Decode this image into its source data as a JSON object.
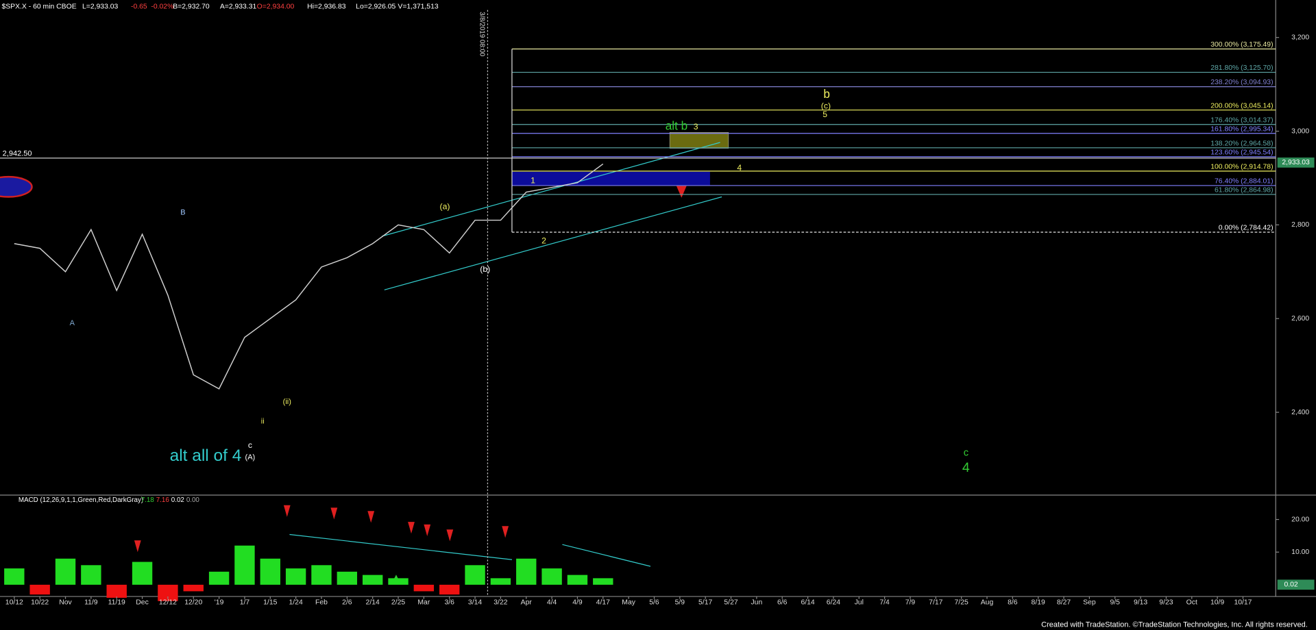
{
  "chart_data": {
    "type": "line",
    "header": [
      "$SPX.X - 60 min CBOE",
      "L=2,933.03",
      "-0.65",
      "-0.02%",
      "B=2,932.70",
      "A=2,933.31",
      "O=2,934.00",
      "Hi=2,936.83",
      "Lo=2,926.05",
      "V=1,371,513"
    ],
    "header_colors": [
      "#ffffff",
      "#ffffff",
      "#ff4040",
      "#ff4040",
      "#ffffff",
      "#ffffff",
      "#ff4040",
      "#ffffff",
      "#ffffff",
      "#ffffff"
    ],
    "categories": [
      "10/12",
      "10/22",
      "Nov",
      "11/9",
      "11/19",
      "Dec",
      "12/12",
      "12/20",
      "'19",
      "1/7",
      "1/15",
      "1/24",
      "Feb",
      "2/6",
      "2/14",
      "2/25",
      "Mar",
      "3/6",
      "3/14",
      "3/22",
      "Apr",
      "4/4",
      "4/9",
      "4/17",
      "May",
      "5/6",
      "5/9",
      "5/17",
      "5/27",
      "Jun",
      "6/6",
      "6/14",
      "6/24",
      "Jul",
      "7/4",
      "7/9",
      "7/17",
      "7/25",
      "Aug",
      "8/6",
      "8/19",
      "8/27",
      "Sep",
      "9/5",
      "9/13",
      "9/23",
      "Oct",
      "10/9",
      "10/17"
    ],
    "series": [
      {
        "name": "$SPX.X",
        "color": "#d0d0d0",
        "values": [
          2760,
          2750,
          2700,
          2790,
          2660,
          2780,
          2650,
          2480,
          2450,
          2560,
          2600,
          2640,
          2710,
          2730,
          2760,
          2800,
          2790,
          2740,
          2810,
          2810,
          2870,
          2880,
          2890,
          2930,
          null,
          null,
          null,
          null,
          null,
          null,
          null,
          null,
          null,
          null,
          null,
          null,
          null,
          null,
          null,
          null,
          null,
          null,
          null,
          null,
          null,
          null,
          null,
          null,
          null
        ]
      }
    ],
    "ylim": [
      2225,
      3280
    ],
    "yticks": [
      {
        "value": 2400,
        "label": "2,400"
      },
      {
        "value": 2600,
        "label": "2,600"
      },
      {
        "value": 2800,
        "label": "2,800"
      },
      {
        "value": 3000,
        "label": "3,000"
      },
      {
        "value": 3200,
        "label": "3,200"
      }
    ],
    "price_marker": {
      "label": "2,942.50",
      "value": 2942.5
    },
    "last_price": {
      "label": "2,933.03",
      "value": 2933.03,
      "color": "#2e8b57"
    },
    "time_marker": "3/8/2019 08:00",
    "fib_levels": [
      {
        "label": "300.00% (3,175.49)",
        "value": 3175.49,
        "color": "#e8e8a0"
      },
      {
        "label": "281.80% (3,125.70)",
        "value": 3125.7,
        "color": "#5fa8a8"
      },
      {
        "label": "238.20% (3,094.93)",
        "value": 3094.93,
        "color": "#8080d0"
      },
      {
        "label": "200.00% (3,045.14)",
        "value": 3045.14,
        "color": "#f0f060"
      },
      {
        "label": "176.40% (3,014.37)",
        "value": 3014.37,
        "color": "#5fa8a8"
      },
      {
        "label": "161.80% (2,995.34)",
        "value": 2995.34,
        "color": "#8080ff"
      },
      {
        "label": "138.20% (2,964.58)",
        "value": 2964.58,
        "color": "#5fa8a8"
      },
      {
        "label": "123.60% (2,945.54)",
        "value": 2945.54,
        "color": "#8080ff"
      },
      {
        "label": "100.00% (2,914.78)",
        "value": 2914.78,
        "color": "#f0f060"
      },
      {
        "label": "76.40% (2,884.01)",
        "value": 2884.01,
        "color": "#8080ff"
      },
      {
        "label": "61.80% (2,864.98)",
        "value": 2864.98,
        "color": "#5fa8a8"
      },
      {
        "label": "0.00% (2,784.42)",
        "value": 2784.42,
        "color": "#ffffff"
      }
    ],
    "annotations": [
      {
        "text": "A",
        "color": "#7fa8d0"
      },
      {
        "text": "B",
        "color": "#a0c8ff"
      },
      {
        "text": "c",
        "color": "#ffffff"
      },
      {
        "text": "(A)",
        "color": "#ffffff"
      },
      {
        "text": "ii",
        "color": "#f0f060"
      },
      {
        "text": "(ii)",
        "color": "#f0f060"
      },
      {
        "text": "(a)",
        "color": "#f0f060"
      },
      {
        "text": "(b)",
        "color": "#ffffff"
      },
      {
        "text": "1",
        "color": "#f0f060"
      },
      {
        "text": "2",
        "color": "#f0f060"
      },
      {
        "text": "3",
        "color": "#f0f060"
      },
      {
        "text": "4",
        "color": "#f0f060"
      },
      {
        "text": "5",
        "color": "#f0f060"
      },
      {
        "text": "alt b",
        "color": "#33cc33"
      },
      {
        "text": "b",
        "color": "#f0f060"
      },
      {
        "text": "(c)",
        "color": "#f0f060"
      },
      {
        "text": "alt all of 4",
        "color": "#33cccc"
      },
      {
        "text": "c",
        "color": "#33cc33"
      },
      {
        "text": "4",
        "color": "#33cc33"
      }
    ],
    "macd": {
      "title": "MACD (12,26,9,1,1,Green,Red,DarkGray)",
      "readings": [
        "7.18",
        "7.16",
        "0.02",
        "0.00"
      ],
      "reading_colors": [
        "#33cc33",
        "#ff4040",
        "#ffffff",
        "#a9a9a9"
      ],
      "values": [
        5,
        -3,
        8,
        6,
        -4,
        7,
        -5,
        -2,
        4,
        12,
        8,
        5,
        6,
        4,
        3,
        2,
        -2,
        -3,
        6,
        2,
        8,
        5,
        3,
        2,
        null,
        null,
        null,
        null,
        null,
        null,
        null,
        null,
        null,
        null,
        null,
        null,
        null,
        null,
        null,
        null,
        null,
        null,
        null,
        null,
        null,
        null,
        null,
        null,
        null
      ],
      "ylim": [
        -3.6,
        27.2
      ],
      "yticks": [
        {
          "value": 10,
          "label": "10.00"
        },
        {
          "value": 20,
          "label": "20.00"
        }
      ],
      "last": {
        "label": "0.02",
        "value": 0.02
      }
    },
    "footer": "Created with TradeStation. ©TradeStation Technologies, Inc. All rights reserved."
  }
}
